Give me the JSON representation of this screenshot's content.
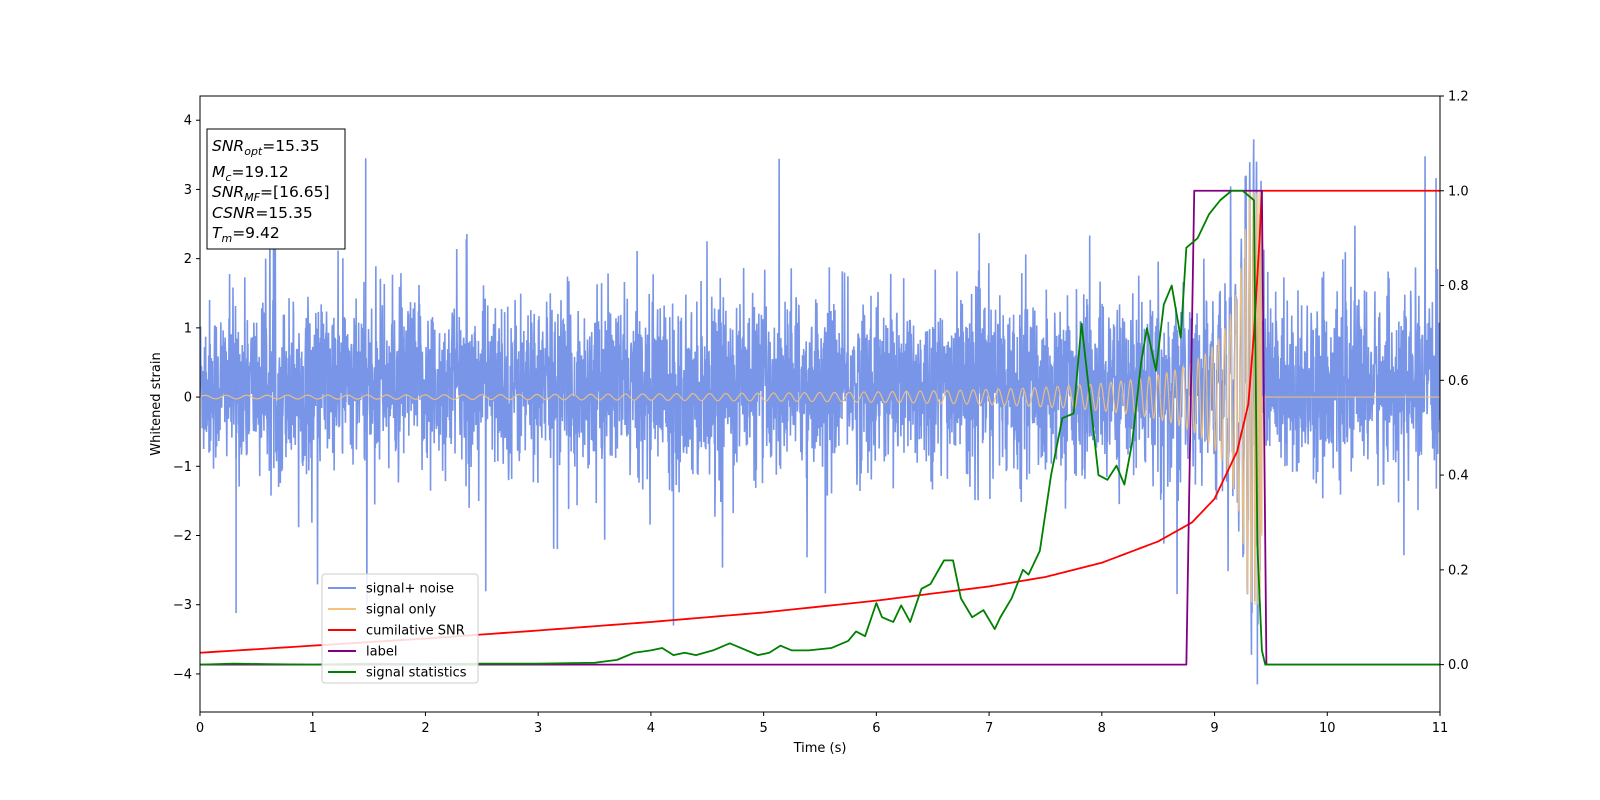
{
  "chart_data": {
    "type": "line",
    "title": "",
    "xlabel": "Time (s)",
    "ylabel": "Whitened strain",
    "xlim": [
      0,
      11
    ],
    "ylim": [
      -4.55,
      4.35
    ],
    "y2lim": [
      -0.1,
      1.2
    ],
    "grid": false,
    "legend_position": "lower-left",
    "x_ticks": [
      "0",
      "1",
      "2",
      "3",
      "4",
      "5",
      "6",
      "7",
      "8",
      "9",
      "10",
      "11"
    ],
    "y_ticks": [
      "4",
      "3",
      "2",
      "1",
      "0",
      "−1",
      "−2",
      "−3",
      "−4"
    ],
    "y2_ticks": [
      "1.2",
      "1.0",
      "0.8",
      "0.6",
      "0.4",
      "0.2",
      "0.0"
    ],
    "annotation": {
      "lines": [
        {
          "sym": "SNR",
          "sub": "opt",
          "text": "=15.35"
        },
        {
          "sym": "M",
          "sub": "c",
          "text": "=19.12"
        },
        {
          "sym": "SNR",
          "sub": "MF",
          "text": "=[16.65]"
        },
        {
          "sym": "CSNR",
          "sub": "",
          "text": "=15.35"
        },
        {
          "sym": "T",
          "sub": "m",
          "text": "=9.42"
        }
      ]
    },
    "series": [
      {
        "name": "signal+ noise",
        "axis": "left",
        "color": "#7895E8",
        "description": "whitened strain noise; amplitude envelope approx ±1.5, spikes up to ±3.5",
        "peaks": [
          [
            1.47,
            3.45
          ],
          [
            9.28,
            3.2
          ],
          [
            9.38,
            -4.15
          ],
          [
            4.2,
            -3.3
          ],
          [
            0.32,
            -3.12
          ]
        ]
      },
      {
        "name": "signal only",
        "axis": "left",
        "color": "#F4C27A",
        "description": "chirp with amplitude rising to about ±3 at merger time 9.42 s, then zero",
        "merger_time": 9.42
      },
      {
        "name": "cumilative SNR",
        "axis": "right",
        "color": "#FF0000",
        "x": [
          0,
          1,
          2,
          3,
          4,
          5,
          6,
          7,
          7.5,
          8,
          8.5,
          8.8,
          9.0,
          9.2,
          9.3,
          9.35,
          9.4,
          9.42,
          11
        ],
        "y": [
          0.025,
          0.04,
          0.055,
          0.072,
          0.09,
          0.11,
          0.135,
          0.165,
          0.185,
          0.215,
          0.26,
          0.3,
          0.35,
          0.45,
          0.55,
          0.7,
          0.9,
          1.0,
          1.0
        ]
      },
      {
        "name": "label",
        "axis": "right",
        "color": "#800080",
        "x": [
          0,
          8.75,
          8.82,
          9.42,
          9.46,
          11
        ],
        "y": [
          0,
          0,
          1,
          1,
          0,
          0
        ]
      },
      {
        "name": "signal statistics",
        "axis": "right",
        "color": "#008000",
        "x": [
          0,
          0.3,
          0.6,
          1.0,
          1.5,
          2.0,
          2.5,
          3.0,
          3.5,
          3.7,
          3.85,
          4.0,
          4.1,
          4.2,
          4.3,
          4.4,
          4.55,
          4.7,
          4.8,
          4.95,
          5.05,
          5.15,
          5.25,
          5.4,
          5.6,
          5.75,
          5.82,
          5.9,
          6.0,
          6.05,
          6.15,
          6.22,
          6.3,
          6.4,
          6.48,
          6.6,
          6.68,
          6.75,
          6.85,
          6.95,
          7.05,
          7.1,
          7.2,
          7.3,
          7.35,
          7.45,
          7.55,
          7.65,
          7.75,
          7.82,
          7.9,
          7.97,
          8.05,
          8.13,
          8.2,
          8.27,
          8.35,
          8.4,
          8.48,
          8.55,
          8.62,
          8.7,
          8.75,
          8.85,
          8.95,
          9.05,
          9.15,
          9.25,
          9.35,
          9.38,
          9.42,
          9.45,
          9.5,
          11
        ],
        "y": [
          0,
          0.002,
          0.001,
          0.0,
          0.002,
          0.001,
          0.002,
          0.002,
          0.004,
          0.01,
          0.025,
          0.03,
          0.035,
          0.02,
          0.025,
          0.02,
          0.03,
          0.045,
          0.035,
          0.02,
          0.025,
          0.04,
          0.03,
          0.03,
          0.035,
          0.05,
          0.07,
          0.06,
          0.13,
          0.1,
          0.09,
          0.125,
          0.09,
          0.16,
          0.17,
          0.22,
          0.22,
          0.14,
          0.1,
          0.115,
          0.075,
          0.1,
          0.14,
          0.2,
          0.19,
          0.24,
          0.4,
          0.52,
          0.53,
          0.72,
          0.55,
          0.4,
          0.39,
          0.42,
          0.38,
          0.47,
          0.64,
          0.71,
          0.62,
          0.76,
          0.8,
          0.69,
          0.88,
          0.9,
          0.95,
          0.98,
          1.0,
          1.0,
          0.98,
          0.25,
          0.03,
          0.0,
          0.0,
          0.0
        ]
      }
    ]
  }
}
